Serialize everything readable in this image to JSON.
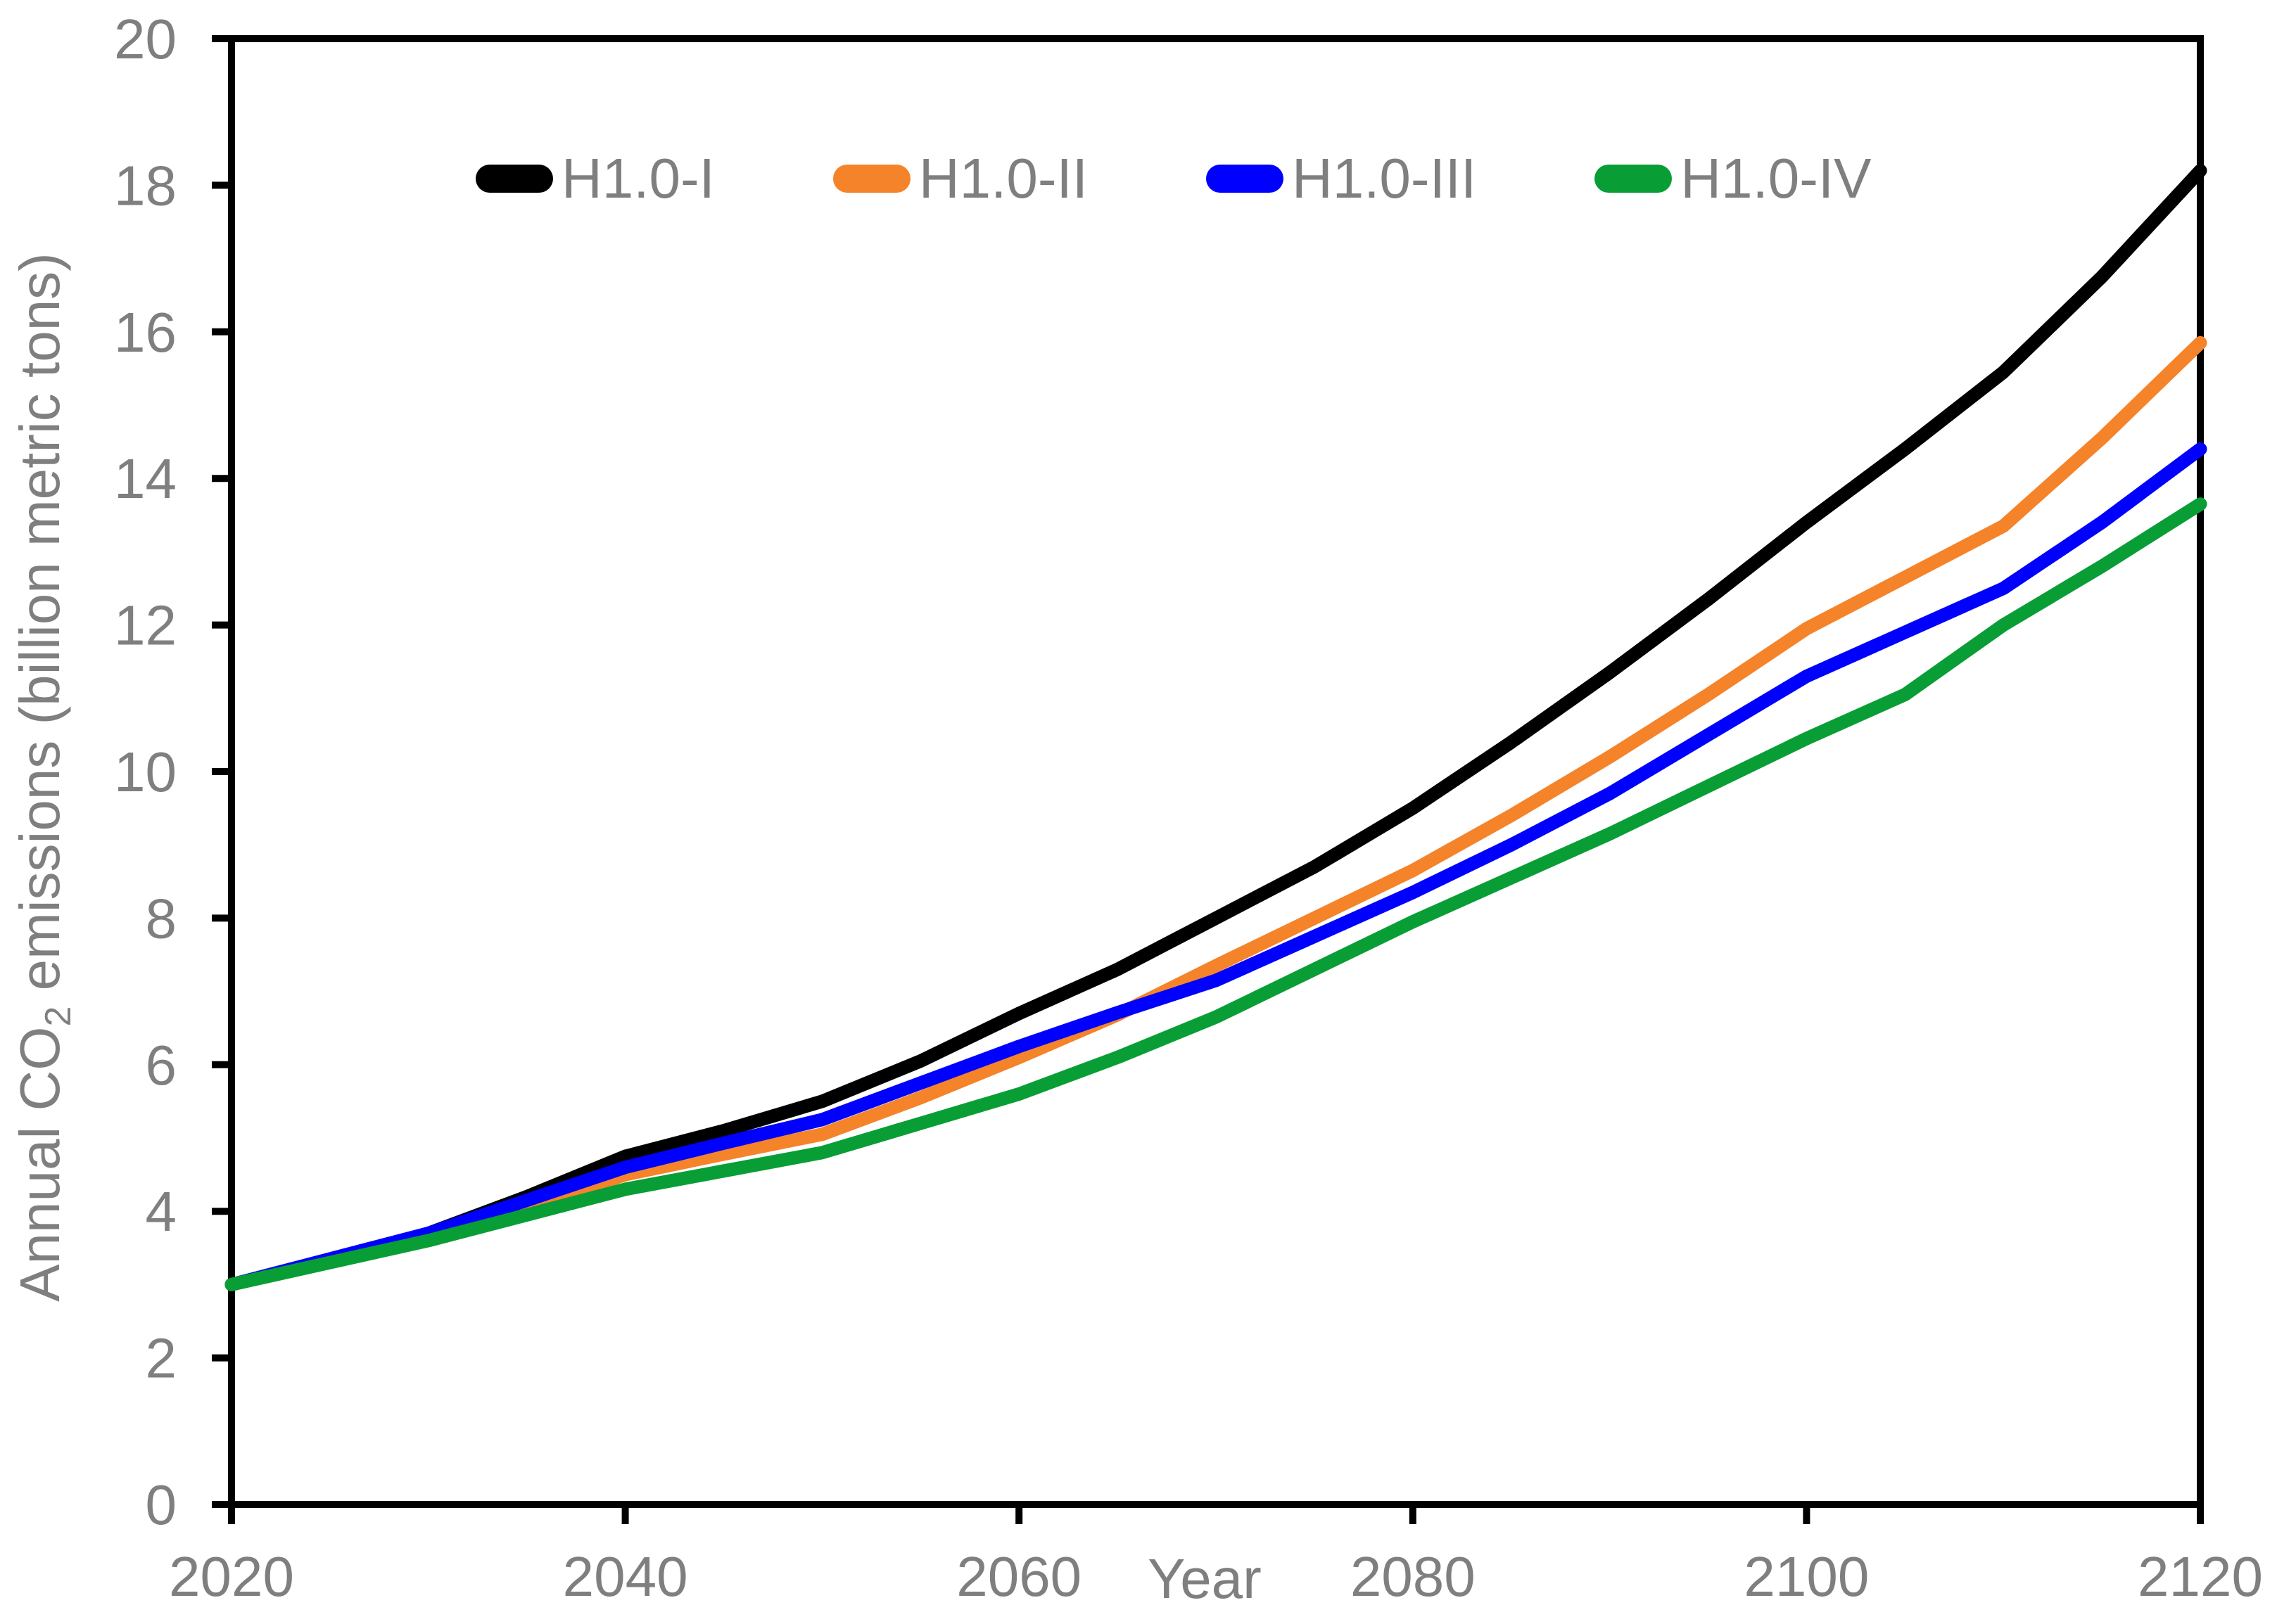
{
  "chart_data": {
    "type": "line",
    "title": "",
    "x_label": "Year",
    "y_label": {
      "prefix": "Annual CO",
      "sub": "2",
      "suffix": " emissions (billion metric tons)"
    },
    "xlim": [
      2020,
      2120
    ],
    "ylim": [
      0,
      20
    ],
    "x_ticks": [
      2020,
      2040,
      2060,
      2080,
      2100,
      2120
    ],
    "y_ticks": [
      0,
      2,
      4,
      6,
      8,
      10,
      12,
      14,
      16,
      18,
      20
    ],
    "grid": false,
    "legend_position": "top-inside",
    "x": [
      2020,
      2025,
      2030,
      2035,
      2040,
      2045,
      2050,
      2055,
      2060,
      2065,
      2070,
      2075,
      2080,
      2085,
      2090,
      2095,
      2100,
      2105,
      2110,
      2115,
      2120
    ],
    "series": [
      {
        "name": "H1.0-I",
        "color": "#000000",
        "values": [
          3.0,
          3.33,
          3.7,
          4.2,
          4.75,
          5.1,
          5.5,
          6.05,
          6.7,
          7.3,
          8.0,
          8.7,
          9.5,
          10.4,
          11.35,
          12.35,
          13.4,
          14.4,
          15.45,
          16.75,
          18.2
        ]
      },
      {
        "name": "H1.0-II",
        "color": "#F5832A",
        "values": [
          3.0,
          3.32,
          3.65,
          4.05,
          4.5,
          4.78,
          5.05,
          5.55,
          6.1,
          6.68,
          7.35,
          8.0,
          8.65,
          9.4,
          10.2,
          11.05,
          11.95,
          12.65,
          13.35,
          14.55,
          15.85
        ]
      },
      {
        "name": "H1.0-III",
        "color": "#0000FE",
        "values": [
          3.0,
          3.35,
          3.7,
          4.15,
          4.6,
          4.93,
          5.25,
          5.75,
          6.25,
          6.71,
          7.15,
          7.75,
          8.35,
          9.0,
          9.7,
          10.5,
          11.3,
          11.9,
          12.5,
          13.4,
          14.4
        ]
      },
      {
        "name": "H1.0-IV",
        "color": "#089E35",
        "values": [
          3.0,
          3.3,
          3.6,
          3.95,
          4.3,
          4.55,
          4.8,
          5.2,
          5.6,
          6.1,
          6.65,
          7.3,
          7.95,
          8.55,
          9.15,
          9.8,
          10.45,
          11.05,
          12.0,
          12.8,
          13.65
        ]
      }
    ],
    "styles": {
      "text_color": "#7f7f7f",
      "axis_color": "#000000"
    }
  }
}
